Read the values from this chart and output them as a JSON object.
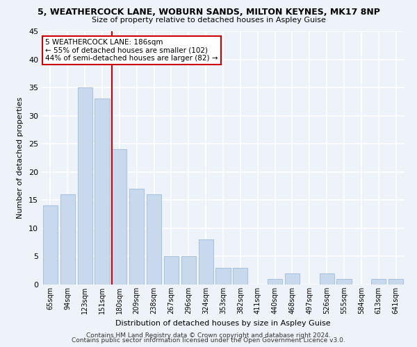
{
  "title1": "5, WEATHERCOCK LANE, WOBURN SANDS, MILTON KEYNES, MK17 8NP",
  "title2": "Size of property relative to detached houses in Aspley Guise",
  "xlabel": "Distribution of detached houses by size in Aspley Guise",
  "ylabel": "Number of detached properties",
  "categories": [
    "65sqm",
    "94sqm",
    "123sqm",
    "151sqm",
    "180sqm",
    "209sqm",
    "238sqm",
    "267sqm",
    "296sqm",
    "324sqm",
    "353sqm",
    "382sqm",
    "411sqm",
    "440sqm",
    "468sqm",
    "497sqm",
    "526sqm",
    "555sqm",
    "584sqm",
    "613sqm",
    "641sqm"
  ],
  "values": [
    14,
    16,
    35,
    33,
    24,
    17,
    16,
    5,
    5,
    8,
    3,
    3,
    0,
    1,
    2,
    0,
    2,
    1,
    0,
    1,
    1
  ],
  "bar_color": "#c9d9ed",
  "bar_edgecolor": "#a8c4de",
  "subject_line_index": 4,
  "subject_line_color": "#cc0000",
  "annotation_text": "5 WEATHERCOCK LANE: 186sqm\n← 55% of detached houses are smaller (102)\n44% of semi-detached houses are larger (82) →",
  "annotation_box_color": "#ffffff",
  "annotation_box_edgecolor": "#cc0000",
  "ylim": [
    0,
    45
  ],
  "yticks": [
    0,
    5,
    10,
    15,
    20,
    25,
    30,
    35,
    40,
    45
  ],
  "footer1": "Contains HM Land Registry data © Crown copyright and database right 2024.",
  "footer2": "Contains public sector information licensed under the Open Government Licence v3.0.",
  "background_color": "#eef2f9",
  "grid_color": "#ffffff"
}
